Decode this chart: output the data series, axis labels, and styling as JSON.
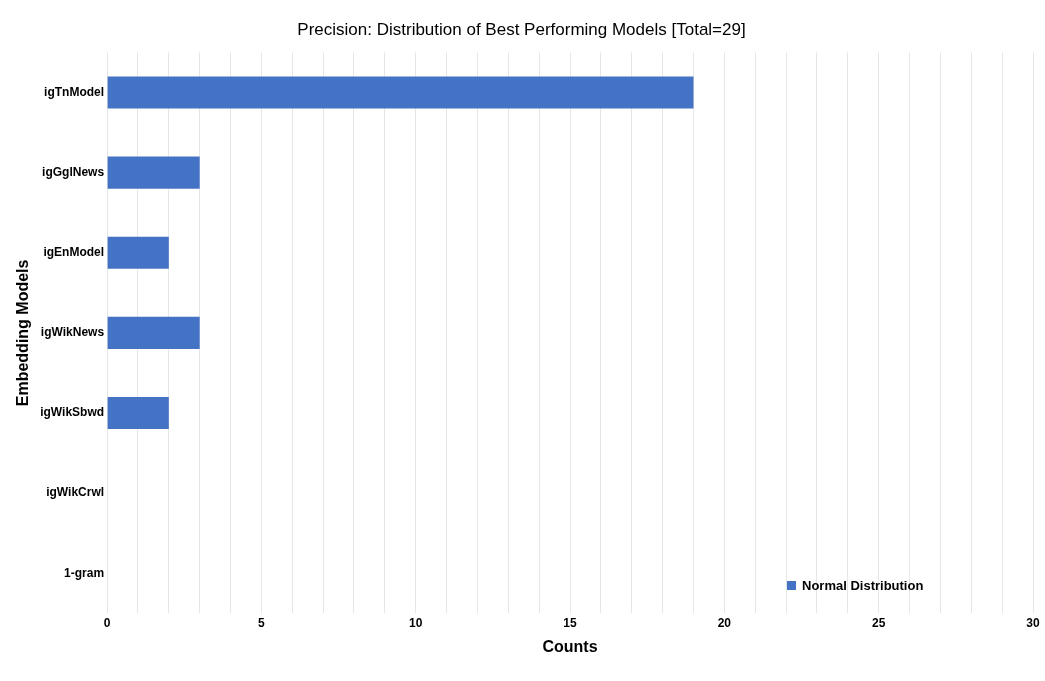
{
  "chart_data": {
    "type": "bar",
    "orientation": "horizontal",
    "title": "Precision: Distribution of Best Performing Models [Total=29]",
    "xlabel": "Counts",
    "ylabel": "Embedding Models",
    "categories": [
      "igTnModel",
      "igGglNews",
      "igEnModel",
      "igWikNews",
      "igWikSbwd",
      "igWikCrwl",
      "1-gram"
    ],
    "series": [
      {
        "name": "Normal Distribution",
        "color": "#4472c4",
        "values": [
          19,
          3,
          2,
          3,
          2,
          0,
          0
        ]
      }
    ],
    "xlim": [
      0,
      30
    ],
    "xticks": [
      0,
      {
        "value": 1,
        "label": null
      },
      {
        "value": 2,
        "label": null
      },
      {
        "value": 3,
        "label": null
      },
      {
        "value": 4,
        "label": null
      },
      5,
      {
        "value": 6,
        "label": null
      },
      {
        "value": 7,
        "label": null
      },
      {
        "value": 8,
        "label": null
      },
      {
        "value": 9,
        "label": null
      },
      10,
      {
        "value": 11,
        "label": null
      },
      {
        "value": 12,
        "label": null
      },
      {
        "value": 13,
        "label": null
      },
      {
        "value": 14,
        "label": null
      },
      15,
      {
        "value": 16,
        "label": null
      },
      {
        "value": 17,
        "label": null
      },
      {
        "value": 18,
        "label": null
      },
      {
        "value": 19,
        "label": null
      },
      20,
      {
        "value": 21,
        "label": null
      },
      {
        "value": 22,
        "label": null
      },
      {
        "value": 23,
        "label": null
      },
      {
        "value": 24,
        "label": null
      },
      25,
      {
        "value": 26,
        "label": null
      },
      {
        "value": 27,
        "label": null
      },
      {
        "value": 28,
        "label": null
      },
      {
        "value": 29,
        "label": null
      },
      30
    ],
    "grid": "x",
    "legend": "bottom right"
  }
}
